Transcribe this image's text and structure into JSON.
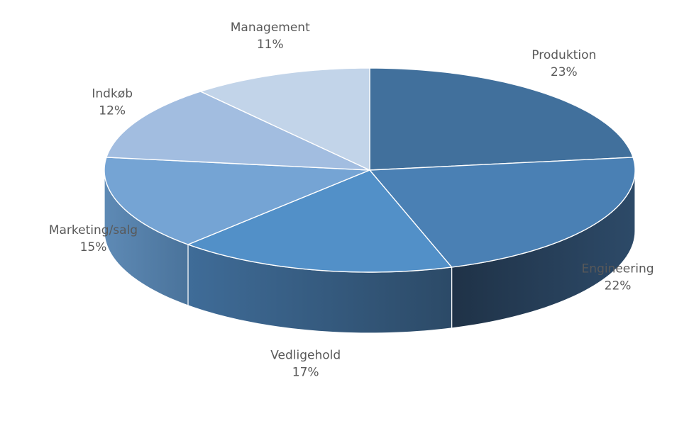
{
  "chart_data": {
    "type": "pie",
    "title": "",
    "categories": [
      "Produktion",
      "Engineering",
      "Vedligehold",
      "Marketing/salg",
      "Indkøb",
      "Management"
    ],
    "values": [
      23,
      22,
      17,
      15,
      12,
      11
    ],
    "percent_labels": [
      "23%",
      "22%",
      "17%",
      "15%",
      "12%",
      "11%"
    ],
    "colors": [
      "#41709c",
      "#4a80b4",
      "#5290c8",
      "#75a4d4",
      "#a2bde0",
      "#c2d4e9"
    ],
    "side_colors": {
      "dark_start": "#1f3247",
      "dark_end": "#2d4a68",
      "mid_start": "#3f6c98",
      "mid_end": "#2c4a67",
      "light_start": "#5e8ab5",
      "light_end": "#4a739b"
    },
    "legend": "none",
    "three_d": true
  }
}
